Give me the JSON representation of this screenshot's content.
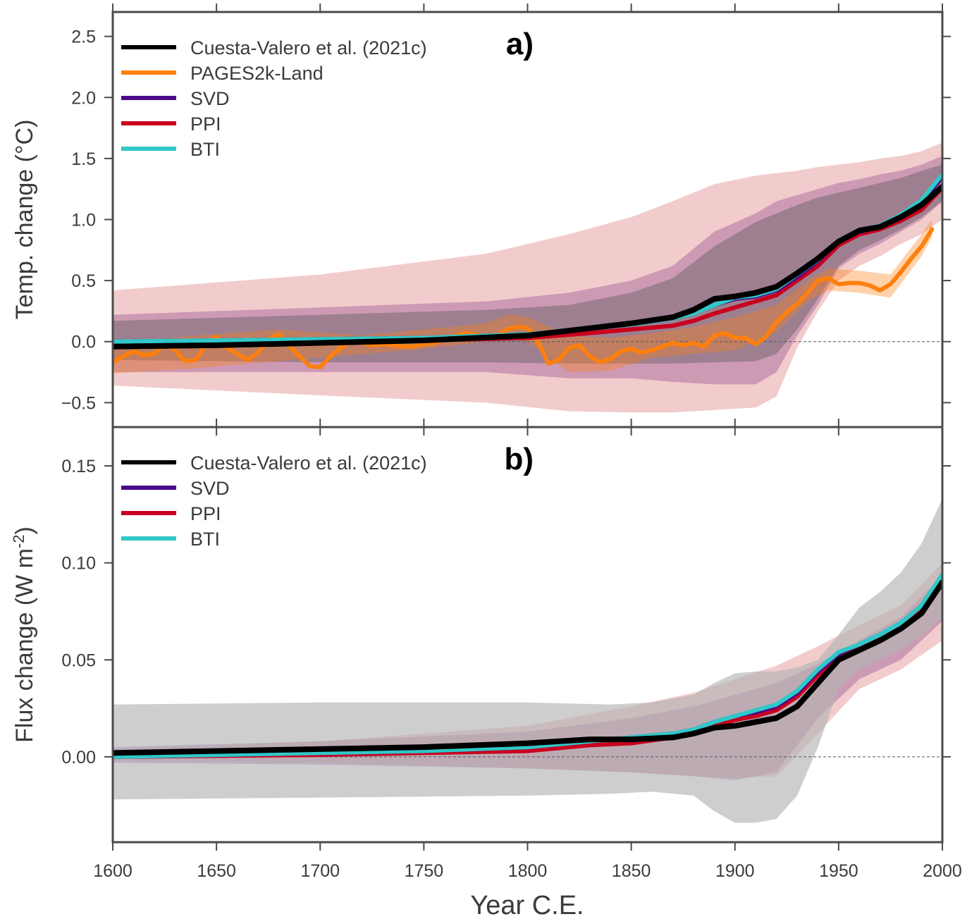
{
  "chart_data": [
    {
      "type": "line",
      "panel_label": "a)",
      "ylabel": "Temp. change (°C)",
      "xlabel": "",
      "xlim": [
        1600,
        2000
      ],
      "ylim": [
        -0.7,
        2.7
      ],
      "x_ticks": [
        "1600",
        "1650",
        "1700",
        "1750",
        "1800",
        "1850",
        "1900",
        "1950",
        "2000"
      ],
      "y_ticks": [
        {
          "value": 2.5,
          "label": "2.5"
        },
        {
          "value": 2.0,
          "label": "2.0"
        },
        {
          "value": 1.5,
          "label": "1.5"
        },
        {
          "value": 1.0,
          "label": "1.0"
        },
        {
          "value": 0.5,
          "label": "0.5"
        },
        {
          "value": 0.0,
          "label": "0.0"
        },
        {
          "value": -0.5,
          "label": "−0.5"
        }
      ],
      "zero_line": true,
      "legend_position": "top-left",
      "legend": [
        "Cuesta-Valero et al. (2021c)",
        "PAGES2k-Land",
        "SVD",
        "PPI",
        "BTI"
      ],
      "series": [
        {
          "name": "Cuesta-Valero et al. (2021c)",
          "color": "#000000",
          "x": [
            1600,
            1650,
            1700,
            1750,
            1800,
            1830,
            1850,
            1870,
            1880,
            1890,
            1900,
            1910,
            1920,
            1930,
            1940,
            1950,
            1960,
            1970,
            1980,
            1990,
            2000
          ],
          "y": [
            -0.04,
            -0.03,
            -0.01,
            0.01,
            0.05,
            0.11,
            0.15,
            0.2,
            0.26,
            0.35,
            0.37,
            0.4,
            0.45,
            0.56,
            0.68,
            0.82,
            0.91,
            0.94,
            1.02,
            1.12,
            1.27
          ]
        },
        {
          "name": "SVD",
          "color": "#4b0a8c",
          "x": [
            1600,
            1650,
            1700,
            1750,
            1800,
            1830,
            1850,
            1870,
            1880,
            1890,
            1900,
            1910,
            1920,
            1930,
            1940,
            1950,
            1960,
            1970,
            1980,
            1990,
            2000
          ],
          "y": [
            0.0,
            0.01,
            0.02,
            0.03,
            0.06,
            0.11,
            0.14,
            0.19,
            0.23,
            0.3,
            0.35,
            0.37,
            0.42,
            0.53,
            0.66,
            0.82,
            0.9,
            0.94,
            1.03,
            1.14,
            1.35
          ]
        },
        {
          "name": "PPI",
          "color": "#c8001e",
          "x": [
            1600,
            1650,
            1700,
            1750,
            1800,
            1830,
            1850,
            1870,
            1880,
            1890,
            1900,
            1910,
            1920,
            1930,
            1940,
            1950,
            1960,
            1970,
            1980,
            1990,
            2000
          ],
          "y": [
            0.0,
            0.0,
            0.0,
            0.01,
            0.03,
            0.07,
            0.1,
            0.13,
            0.17,
            0.23,
            0.28,
            0.33,
            0.38,
            0.5,
            0.62,
            0.79,
            0.88,
            0.92,
            0.99,
            1.08,
            1.26
          ]
        },
        {
          "name": "BTI",
          "color": "#30c8c8",
          "x": [
            1600,
            1650,
            1700,
            1750,
            1800,
            1830,
            1850,
            1870,
            1880,
            1890,
            1900,
            1910,
            1920,
            1930,
            1940,
            1950,
            1960,
            1970,
            1980,
            1990,
            2000
          ],
          "y": [
            0.0,
            0.01,
            0.02,
            0.03,
            0.06,
            0.11,
            0.14,
            0.19,
            0.23,
            0.3,
            0.36,
            0.38,
            0.43,
            0.55,
            0.67,
            0.83,
            0.91,
            0.95,
            1.04,
            1.16,
            1.37
          ]
        },
        {
          "name": "PAGES2k-Land",
          "color": "#ff7f0e",
          "x": [
            1600,
            1605,
            1610,
            1615,
            1620,
            1625,
            1630,
            1635,
            1640,
            1645,
            1650,
            1655,
            1660,
            1665,
            1670,
            1675,
            1680,
            1685,
            1690,
            1695,
            1700,
            1705,
            1710,
            1715,
            1720,
            1725,
            1730,
            1735,
            1740,
            1745,
            1750,
            1755,
            1760,
            1765,
            1770,
            1775,
            1780,
            1785,
            1790,
            1795,
            1800,
            1805,
            1810,
            1815,
            1820,
            1825,
            1830,
            1835,
            1840,
            1845,
            1850,
            1855,
            1860,
            1865,
            1870,
            1875,
            1880,
            1885,
            1890,
            1895,
            1900,
            1905,
            1910,
            1915,
            1920,
            1925,
            1930,
            1935,
            1940,
            1945,
            1950,
            1955,
            1960,
            1965,
            1970,
            1975,
            1980,
            1985,
            1990,
            1995
          ],
          "y": [
            -0.17,
            -0.12,
            -0.08,
            -0.11,
            -0.1,
            -0.02,
            -0.07,
            -0.16,
            -0.15,
            -0.02,
            0.04,
            -0.05,
            -0.1,
            -0.15,
            -0.09,
            0.02,
            0.06,
            -0.03,
            -0.12,
            -0.2,
            -0.21,
            -0.12,
            -0.05,
            0.01,
            -0.01,
            -0.03,
            -0.02,
            -0.03,
            -0.04,
            -0.04,
            -0.02,
            -0.01,
            0.02,
            0.05,
            0.07,
            0.06,
            0.02,
            0.05,
            0.1,
            0.12,
            0.11,
            0.0,
            -0.18,
            -0.15,
            -0.05,
            -0.03,
            -0.12,
            -0.17,
            -0.14,
            -0.08,
            -0.06,
            -0.09,
            -0.07,
            -0.04,
            -0.01,
            -0.03,
            -0.01,
            -0.04,
            0.05,
            0.07,
            0.03,
            0.03,
            -0.02,
            0.04,
            0.16,
            0.24,
            0.31,
            0.4,
            0.5,
            0.52,
            0.47,
            0.48,
            0.48,
            0.46,
            0.42,
            0.47,
            0.57,
            0.68,
            0.78,
            0.92
          ]
        }
      ],
      "bands": [
        {
          "label": "SVD range",
          "color": "#4b0a8c",
          "opacity": 0.33,
          "x": [
            1600,
            1700,
            1780,
            1820,
            1850,
            1870,
            1890,
            1910,
            1920,
            1930,
            1940,
            1950,
            1960,
            1970,
            1980,
            1990,
            2000
          ],
          "lower": [
            -0.25,
            -0.25,
            -0.25,
            -0.3,
            -0.3,
            -0.33,
            -0.35,
            -0.35,
            -0.25,
            0.05,
            0.3,
            0.6,
            0.72,
            0.8,
            0.9,
            1.0,
            1.15
          ],
          "upper": [
            0.22,
            0.28,
            0.33,
            0.4,
            0.5,
            0.62,
            0.9,
            1.05,
            1.15,
            1.2,
            1.25,
            1.3,
            1.33,
            1.37,
            1.4,
            1.45,
            1.52
          ]
        },
        {
          "label": "PPI range",
          "color": "#dc7878",
          "opacity": 0.38,
          "x": [
            1600,
            1700,
            1780,
            1820,
            1850,
            1870,
            1890,
            1910,
            1920,
            1930,
            1940,
            1950,
            1960,
            1970,
            1980,
            1990,
            2000
          ],
          "lower": [
            -0.36,
            -0.44,
            -0.5,
            -0.57,
            -0.58,
            -0.58,
            -0.56,
            -0.54,
            -0.45,
            -0.05,
            0.25,
            0.5,
            0.62,
            0.7,
            0.8,
            0.88,
            1.0
          ],
          "upper": [
            0.42,
            0.55,
            0.72,
            0.88,
            1.02,
            1.15,
            1.29,
            1.36,
            1.38,
            1.4,
            1.43,
            1.45,
            1.47,
            1.5,
            1.52,
            1.56,
            1.63
          ]
        },
        {
          "label": "BTI range",
          "color": "#585858",
          "opacity": 0.4,
          "x": [
            1600,
            1700,
            1780,
            1820,
            1850,
            1870,
            1890,
            1910,
            1920,
            1930,
            1940,
            1950,
            1960,
            1970,
            1980,
            1990,
            2000
          ],
          "lower": [
            -0.15,
            -0.17,
            -0.17,
            -0.18,
            -0.18,
            -0.18,
            -0.17,
            -0.16,
            -0.1,
            0.1,
            0.35,
            0.62,
            0.75,
            0.83,
            0.92,
            1.02,
            1.15
          ],
          "upper": [
            0.17,
            0.22,
            0.26,
            0.3,
            0.4,
            0.52,
            0.78,
            0.98,
            1.05,
            1.12,
            1.18,
            1.22,
            1.26,
            1.3,
            1.34,
            1.4,
            1.45
          ]
        },
        {
          "label": "PAGES2k-Land range",
          "color": "#ff7f0e",
          "opacity": 0.35,
          "x": [
            1600,
            1640,
            1680,
            1720,
            1750,
            1780,
            1790,
            1800,
            1820,
            1840,
            1860,
            1880,
            1900,
            1920,
            1935,
            1945,
            1960,
            1975,
            1990,
            1995
          ],
          "lower": [
            -0.26,
            -0.22,
            -0.16,
            -0.1,
            -0.06,
            0.0,
            0.02,
            0.0,
            -0.25,
            -0.24,
            -0.13,
            -0.1,
            -0.07,
            0.08,
            0.33,
            0.42,
            0.4,
            0.36,
            0.7,
            0.86
          ],
          "upper": [
            -0.02,
            0.05,
            0.1,
            0.05,
            0.1,
            0.15,
            0.22,
            0.2,
            0.05,
            0.03,
            0.07,
            0.12,
            0.2,
            0.3,
            0.5,
            0.6,
            0.58,
            0.55,
            0.88,
            1.0
          ]
        }
      ]
    },
    {
      "type": "line",
      "panel_label": "b)",
      "ylabel": "Flux change (W m⁻²)",
      "xlabel": "Year C.E.",
      "xlim": [
        1600,
        2000
      ],
      "ylim": [
        -0.044,
        0.17
      ],
      "x_ticks": [
        "1600",
        "1650",
        "1700",
        "1750",
        "1800",
        "1850",
        "1900",
        "1950",
        "2000"
      ],
      "y_ticks": [
        {
          "value": 0.15,
          "label": "0.15"
        },
        {
          "value": 0.1,
          "label": "0.10"
        },
        {
          "value": 0.05,
          "label": "0.05"
        },
        {
          "value": 0.0,
          "label": "0.00"
        }
      ],
      "zero_line": true,
      "legend_position": "top-left",
      "legend": [
        "Cuesta-Valero et al. (2021c)",
        "SVD",
        "PPI",
        "BTI"
      ],
      "series": [
        {
          "name": "Cuesta-Valero et al. (2021c)",
          "color": "#000000",
          "x": [
            1600,
            1700,
            1750,
            1800,
            1830,
            1850,
            1870,
            1880,
            1890,
            1900,
            1910,
            1920,
            1930,
            1940,
            1950,
            1960,
            1970,
            1980,
            1990,
            2000
          ],
          "y": [
            0.002,
            0.004,
            0.005,
            0.007,
            0.009,
            0.009,
            0.01,
            0.012,
            0.015,
            0.016,
            0.018,
            0.02,
            0.026,
            0.038,
            0.05,
            0.055,
            0.06,
            0.066,
            0.074,
            0.09
          ]
        },
        {
          "name": "SVD",
          "color": "#4b0a8c",
          "x": [
            1600,
            1700,
            1750,
            1800,
            1830,
            1850,
            1870,
            1880,
            1890,
            1900,
            1910,
            1920,
            1930,
            1940,
            1950,
            1960,
            1970,
            1980,
            1990,
            2000
          ],
          "y": [
            0.0,
            0.002,
            0.003,
            0.005,
            0.008,
            0.01,
            0.012,
            0.014,
            0.018,
            0.021,
            0.023,
            0.026,
            0.033,
            0.044,
            0.053,
            0.058,
            0.063,
            0.069,
            0.078,
            0.093
          ]
        },
        {
          "name": "PPI",
          "color": "#c8001e",
          "x": [
            1600,
            1700,
            1750,
            1800,
            1830,
            1850,
            1870,
            1880,
            1890,
            1900,
            1910,
            1920,
            1930,
            1940,
            1950,
            1960,
            1970,
            1980,
            1990,
            2000
          ],
          "y": [
            0.0,
            0.001,
            0.002,
            0.003,
            0.006,
            0.007,
            0.01,
            0.012,
            0.016,
            0.019,
            0.021,
            0.024,
            0.031,
            0.042,
            0.051,
            0.057,
            0.062,
            0.068,
            0.077,
            0.091
          ]
        },
        {
          "name": "BTI",
          "color": "#30c8c8",
          "x": [
            1600,
            1700,
            1750,
            1800,
            1830,
            1850,
            1870,
            1880,
            1890,
            1900,
            1910,
            1920,
            1930,
            1940,
            1950,
            1960,
            1970,
            1980,
            1990,
            2000
          ],
          "y": [
            0.0,
            0.002,
            0.003,
            0.005,
            0.008,
            0.01,
            0.012,
            0.014,
            0.018,
            0.021,
            0.024,
            0.027,
            0.034,
            0.045,
            0.054,
            0.058,
            0.063,
            0.069,
            0.078,
            0.094
          ]
        }
      ],
      "bands": [
        {
          "label": "SVD range",
          "color": "#4b0a8c",
          "opacity": 0.33,
          "x": [
            1600,
            1700,
            1800,
            1850,
            1880,
            1900,
            1920,
            1940,
            1960,
            1980,
            2000
          ],
          "lower": [
            -0.003,
            -0.004,
            -0.006,
            -0.008,
            -0.01,
            -0.012,
            -0.008,
            0.02,
            0.04,
            0.05,
            0.07
          ],
          "upper": [
            0.005,
            0.008,
            0.013,
            0.02,
            0.026,
            0.032,
            0.038,
            0.048,
            0.06,
            0.072,
            0.093
          ]
        },
        {
          "label": "PPI range",
          "color": "#dc7878",
          "opacity": 0.38,
          "x": [
            1600,
            1700,
            1800,
            1850,
            1880,
            1900,
            1920,
            1940,
            1960,
            1980,
            2000
          ],
          "lower": [
            -0.002,
            -0.003,
            -0.006,
            -0.008,
            -0.01,
            -0.011,
            -0.01,
            0.012,
            0.035,
            0.045,
            0.06
          ],
          "upper": [
            0.004,
            0.008,
            0.016,
            0.026,
            0.033,
            0.04,
            0.047,
            0.057,
            0.068,
            0.078,
            0.1
          ]
        },
        {
          "label": "BTI range",
          "color": "#b4b4b4",
          "opacity": 0.65,
          "x": [
            1600,
            1700,
            1800,
            1840,
            1860,
            1880,
            1890,
            1900,
            1910,
            1920,
            1930,
            1940,
            1950,
            1960,
            1970,
            1980,
            1990,
            2000
          ],
          "lower": [
            -0.022,
            -0.021,
            -0.02,
            -0.019,
            -0.018,
            -0.02,
            -0.028,
            -0.034,
            -0.034,
            -0.032,
            -0.02,
            0.005,
            0.035,
            0.045,
            0.05,
            0.055,
            0.062,
            0.072
          ],
          "upper": [
            0.027,
            0.028,
            0.028,
            0.027,
            0.028,
            0.032,
            0.038,
            0.043,
            0.044,
            0.044,
            0.046,
            0.05,
            0.063,
            0.077,
            0.085,
            0.095,
            0.11,
            0.133
          ]
        }
      ]
    }
  ]
}
